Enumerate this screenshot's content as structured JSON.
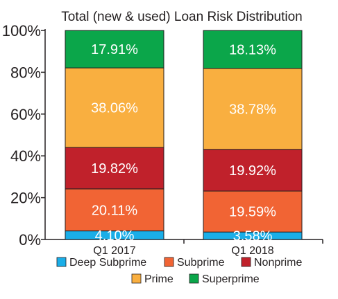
{
  "chart_data": {
    "type": "bar",
    "stacked": true,
    "normalized_percent": true,
    "title": "Total (new & used) Loan Risk Distribution",
    "categories": [
      "Q1 2017",
      "Q1 2018"
    ],
    "ylim": [
      0,
      100
    ],
    "y_ticks": [
      "0%",
      "20%",
      "40%",
      "60%",
      "80%",
      "100%"
    ],
    "grid": false,
    "legend_position": "bottom",
    "series": [
      {
        "name": "Deep Subprime",
        "color": "#1aaee8",
        "values": [
          4.1,
          3.58
        ],
        "labels": [
          "4.10%",
          "3.58%"
        ]
      },
      {
        "name": "Subprime",
        "color": "#f16434",
        "values": [
          20.11,
          19.59
        ],
        "labels": [
          "20.11%",
          "19.59%"
        ]
      },
      {
        "name": "Nonprime",
        "color": "#c0212b",
        "values": [
          19.82,
          19.92
        ],
        "labels": [
          "19.82%",
          "19.92%"
        ]
      },
      {
        "name": "Prime",
        "color": "#f9af40",
        "values": [
          38.06,
          38.78
        ],
        "labels": [
          "38.06%",
          "38.78%"
        ]
      },
      {
        "name": "Superprime",
        "color": "#0ba64a",
        "values": [
          17.91,
          18.13
        ],
        "labels": [
          "17.91%",
          "18.13%"
        ]
      }
    ]
  }
}
